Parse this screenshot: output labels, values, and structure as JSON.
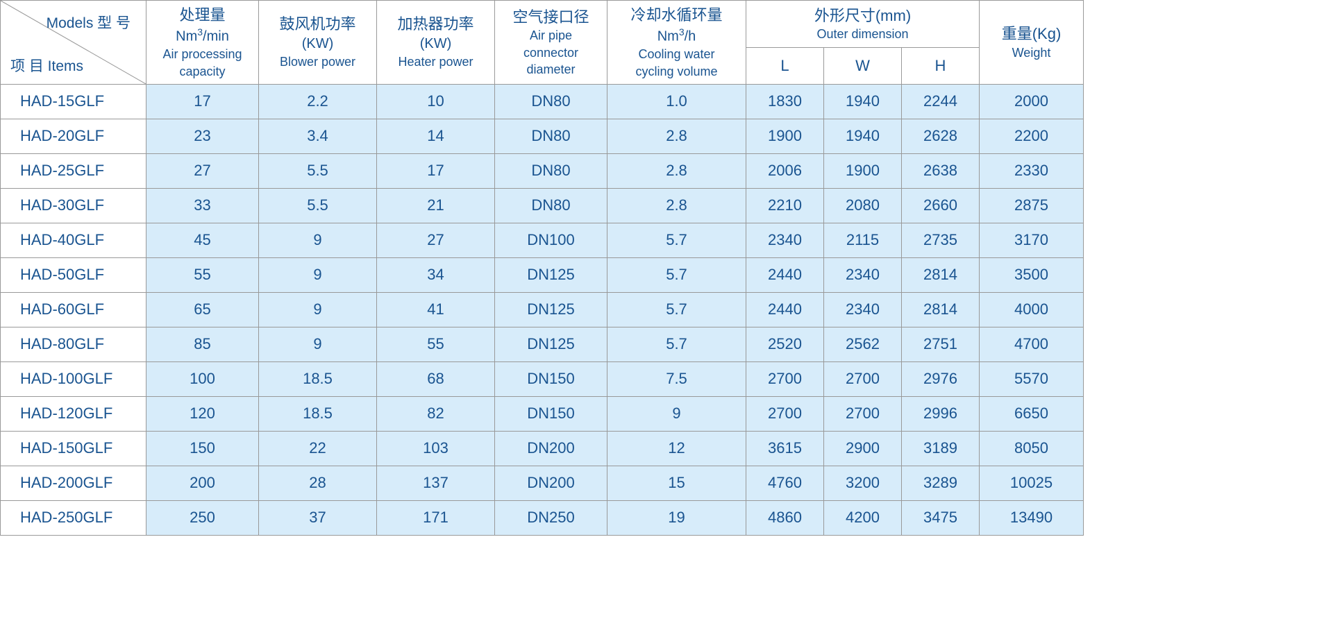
{
  "colors": {
    "text": "#1a5490",
    "header_bg": "#ffffff",
    "data_bg": "#d7ecfa",
    "border": "#999999"
  },
  "corner": {
    "models_label": "Models 型  号",
    "items_label": "项  目 Items"
  },
  "columns": {
    "c1": {
      "zh": "处理量",
      "unit_html": "Nm<sup>3</sup>/min",
      "en1": "Air processing",
      "en2": "capacity"
    },
    "c2": {
      "zh": "鼓风机功率",
      "unit": "(KW)",
      "en": "Blower power"
    },
    "c3": {
      "zh": "加热器功率",
      "unit": "(KW)",
      "en": "Heater power"
    },
    "c4": {
      "zh": "空气接口径",
      "en1": "Air pipe",
      "en2": "connector",
      "en3": "diameter"
    },
    "c5": {
      "zh": "冷却水循环量",
      "unit_html": "Nm<sup>3</sup>/h",
      "en1": "Cooling water",
      "en2": "cycling volume"
    },
    "outer": {
      "zh": "外形尺寸(mm)",
      "en": "Outer dimension",
      "L": "L",
      "W": "W",
      "H": "H"
    },
    "weight": {
      "zh": "重量(Kg)",
      "en": "Weight"
    }
  },
  "rows": [
    {
      "model": "HAD-15GLF",
      "cap": "17",
      "blower": "2.2",
      "heater": "10",
      "pipe": "DN80",
      "cool": "1.0",
      "L": "1830",
      "W": "1940",
      "H": "2244",
      "wt": "2000"
    },
    {
      "model": "HAD-20GLF",
      "cap": "23",
      "blower": "3.4",
      "heater": "14",
      "pipe": "DN80",
      "cool": "2.8",
      "L": "1900",
      "W": "1940",
      "H": "2628",
      "wt": "2200"
    },
    {
      "model": "HAD-25GLF",
      "cap": "27",
      "blower": "5.5",
      "heater": "17",
      "pipe": "DN80",
      "cool": "2.8",
      "L": "2006",
      "W": "1900",
      "H": "2638",
      "wt": "2330"
    },
    {
      "model": "HAD-30GLF",
      "cap": "33",
      "blower": "5.5",
      "heater": "21",
      "pipe": "DN80",
      "cool": "2.8",
      "L": "2210",
      "W": "2080",
      "H": "2660",
      "wt": "2875"
    },
    {
      "model": "HAD-40GLF",
      "cap": "45",
      "blower": "9",
      "heater": "27",
      "pipe": "DN100",
      "cool": "5.7",
      "L": "2340",
      "W": "2115",
      "H": "2735",
      "wt": "3170"
    },
    {
      "model": "HAD-50GLF",
      "cap": "55",
      "blower": "9",
      "heater": "34",
      "pipe": "DN125",
      "cool": "5.7",
      "L": "2440",
      "W": "2340",
      "H": "2814",
      "wt": "3500"
    },
    {
      "model": "HAD-60GLF",
      "cap": "65",
      "blower": "9",
      "heater": "41",
      "pipe": "DN125",
      "cool": "5.7",
      "L": "2440",
      "W": "2340",
      "H": "2814",
      "wt": "4000"
    },
    {
      "model": "HAD-80GLF",
      "cap": "85",
      "blower": "9",
      "heater": "55",
      "pipe": "DN125",
      "cool": "5.7",
      "L": "2520",
      "W": "2562",
      "H": "2751",
      "wt": "4700"
    },
    {
      "model": "HAD-100GLF",
      "cap": "100",
      "blower": "18.5",
      "heater": "68",
      "pipe": "DN150",
      "cool": "7.5",
      "L": "2700",
      "W": "2700",
      "H": "2976",
      "wt": "5570"
    },
    {
      "model": "HAD-120GLF",
      "cap": "120",
      "blower": "18.5",
      "heater": "82",
      "pipe": "DN150",
      "cool": "9",
      "L": "2700",
      "W": "2700",
      "H": "2996",
      "wt": "6650"
    },
    {
      "model": "HAD-150GLF",
      "cap": "150",
      "blower": "22",
      "heater": "103",
      "pipe": "DN200",
      "cool": "12",
      "L": "3615",
      "W": "2900",
      "H": "3189",
      "wt": "8050"
    },
    {
      "model": "HAD-200GLF",
      "cap": "200",
      "blower": "28",
      "heater": "137",
      "pipe": "DN200",
      "cool": "15",
      "L": "4760",
      "W": "3200",
      "H": "3289",
      "wt": "10025"
    },
    {
      "model": "HAD-250GLF",
      "cap": "250",
      "blower": "37",
      "heater": "171",
      "pipe": "DN250",
      "cool": "19",
      "L": "4860",
      "W": "4200",
      "H": "3475",
      "wt": "13490"
    }
  ]
}
